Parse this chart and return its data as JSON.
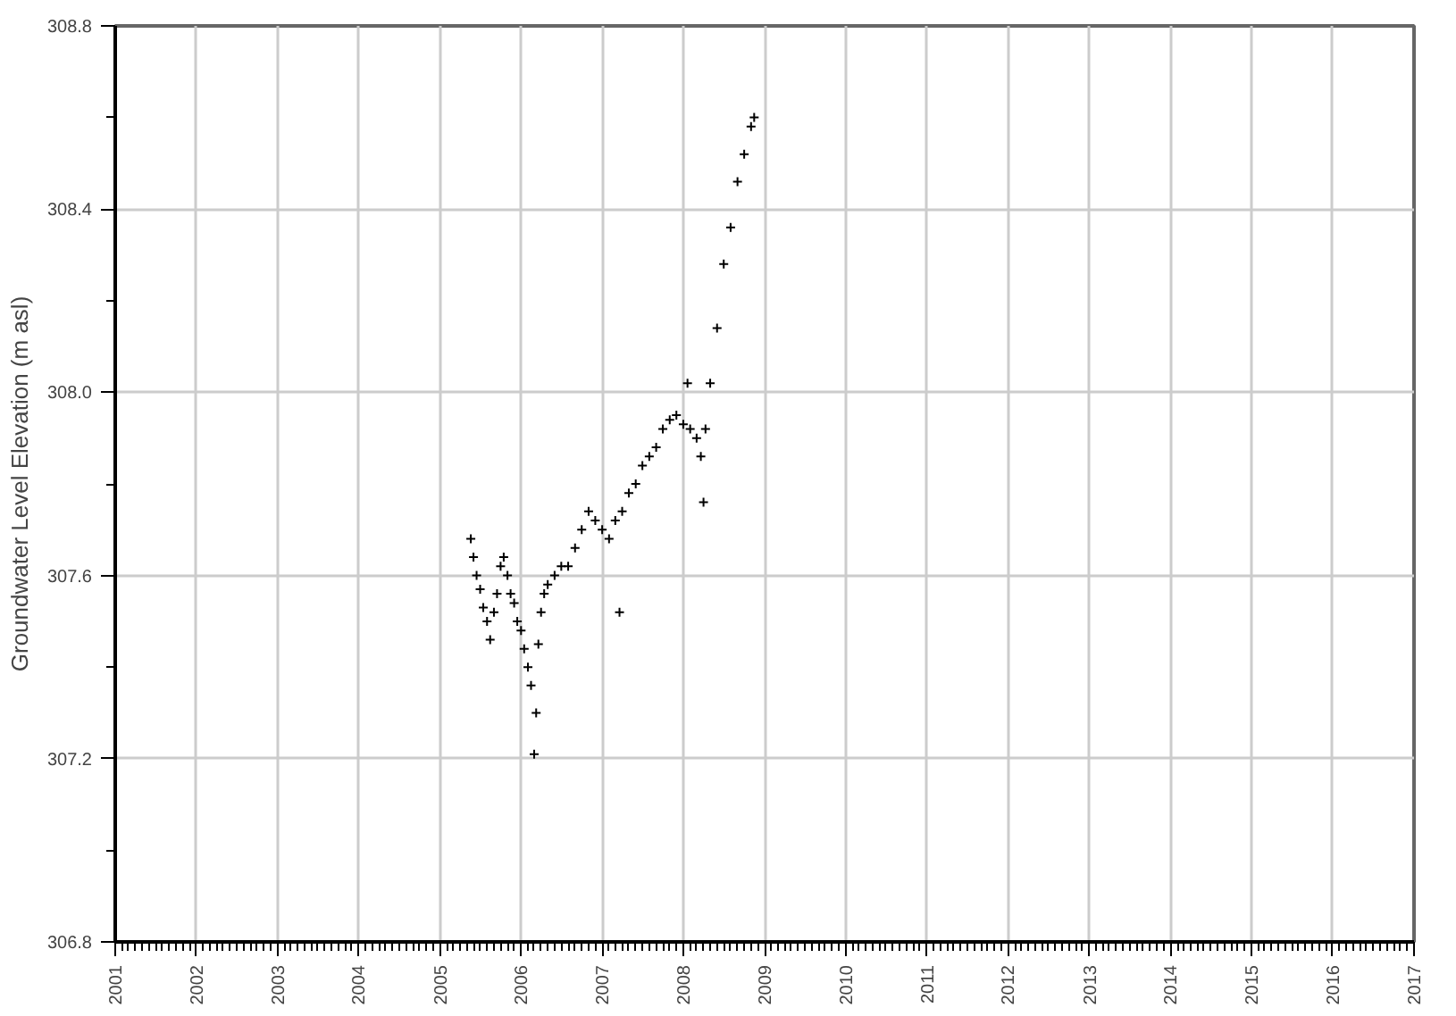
{
  "chart_data": {
    "type": "scatter",
    "ylabel": "Groundwater Level Elevation (m asl)",
    "marker": "cross",
    "grid": true,
    "xlim": [
      "2001",
      "2017"
    ],
    "xticks": [
      "2001",
      "2002",
      "2003",
      "2004",
      "2005",
      "2006",
      "2007",
      "2008",
      "2009",
      "2010",
      "2011",
      "2012",
      "2013",
      "2014",
      "2015",
      "2016",
      "2017"
    ],
    "ylim": [
      306.8,
      308.8
    ],
    "yticks": [
      306.8,
      307.2,
      307.6,
      {
        "value": 308,
        "label": "308.0"
      },
      308.4,
      308.8
    ],
    "series": [
      {
        "color": "#000000",
        "x": [
          "2005-05-20",
          "2005-06-01",
          "2005-06-15",
          "2005-07-01",
          "2005-07-15",
          "2005-08-01",
          "2005-08-15",
          "2005-09-01",
          "2005-09-15",
          "2005-10-01",
          "2005-10-15",
          "2005-11-01",
          "2005-11-15",
          "2005-12-01",
          "2005-12-15",
          "2006-01-01",
          "2006-01-15",
          "2006-02-01",
          "2006-02-15",
          "2006-03-01",
          "2006-03-10",
          "2006-03-20",
          "2006-04-01",
          "2006-04-15",
          "2006-05-01",
          "2006-06-01",
          "2006-07-01",
          "2006-08-01",
          "2006-09-01",
          "2006-10-01",
          "2006-11-01",
          "2006-12-01",
          "2007-01-01",
          "2007-02-01",
          "2007-03-01",
          "2007-03-20",
          "2007-04-01",
          "2007-05-01",
          "2007-06-01",
          "2007-07-01",
          "2007-08-01",
          "2007-09-01",
          "2007-10-01",
          "2007-11-01",
          "2007-12-01",
          "2008-01-01",
          "2008-01-20",
          "2008-02-01",
          "2008-03-01",
          "2008-03-20",
          "2008-04-01",
          "2008-04-10",
          "2008-05-01",
          "2008-06-01",
          "2008-07-01",
          "2008-08-01",
          "2008-09-01",
          "2008-10-01",
          "2008-11-01",
          "2008-11-15"
        ],
        "values": [
          307.68,
          307.64,
          307.6,
          307.57,
          307.53,
          307.5,
          307.46,
          307.52,
          307.56,
          307.62,
          307.64,
          307.6,
          307.56,
          307.54,
          307.5,
          307.48,
          307.44,
          307.4,
          307.36,
          307.21,
          307.3,
          307.45,
          307.52,
          307.56,
          307.58,
          307.6,
          307.62,
          307.62,
          307.66,
          307.7,
          307.74,
          307.72,
          307.7,
          307.68,
          307.72,
          307.52,
          307.74,
          307.78,
          307.8,
          307.84,
          307.86,
          307.88,
          307.92,
          307.94,
          307.95,
          307.93,
          308.02,
          307.92,
          307.9,
          307.86,
          307.76,
          307.92,
          308.02,
          308.14,
          308.28,
          308.36,
          308.46,
          308.52,
          308.58,
          308.6
        ]
      }
    ]
  }
}
